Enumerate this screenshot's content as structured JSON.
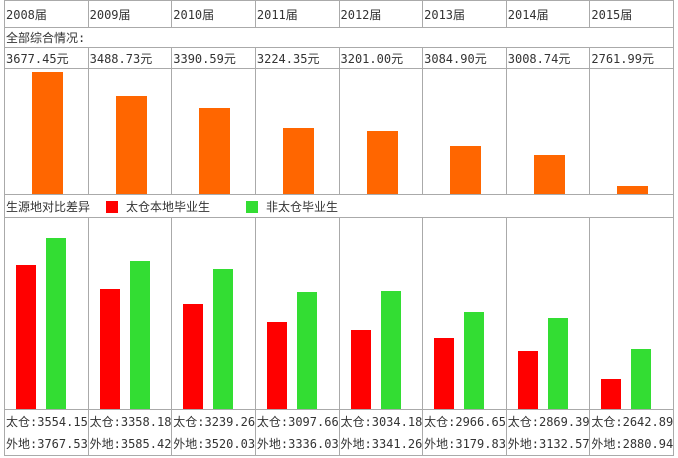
{
  "header_years": [
    "2008届",
    "2009届",
    "2010届",
    "2011届",
    "2012届",
    "2013届",
    "2014届",
    "2015届"
  ],
  "overall_label": "全部综合情况:",
  "overall_values": [
    "3677.45元",
    "3488.73元",
    "3390.59元",
    "3224.35元",
    "3201.00元",
    "3084.90元",
    "3008.74元",
    "2761.99元"
  ],
  "comparison_label": "生源地对比差异",
  "legend": {
    "local": "太仓本地毕业生",
    "nonlocal": "非太仓毕业生"
  },
  "labels": {
    "local": [
      "太仓:3554.15",
      "太仓:3358.18",
      "太仓:3239.26",
      "太仓:3097.66",
      "太仓:3034.18",
      "太仓:2966.65",
      "太仓:2869.39",
      "太仓:2642.89"
    ],
    "nonlocal": [
      "外地:3767.53",
      "外地:3585.42",
      "外地:3520.03",
      "外地:3336.03",
      "外地:3341.26",
      "外地:3179.83",
      "外地:3132.57",
      "外地:2880.94"
    ]
  },
  "colors": {
    "overall": "#ff6600",
    "local": "#ff0000",
    "nonlocal": "#33dd33"
  },
  "chart_data": [
    {
      "type": "bar",
      "categories": [
        "2008届",
        "2009届",
        "2010届",
        "2011届",
        "2012届",
        "2013届",
        "2014届",
        "2015届"
      ],
      "values": [
        3677.45,
        3488.73,
        3390.59,
        3224.35,
        3201.0,
        3084.9,
        3008.74,
        2761.99
      ]
    },
    {
      "type": "bar",
      "categories": [
        "2008届",
        "2009届",
        "2010届",
        "2011届",
        "2012届",
        "2013届",
        "2014届",
        "2015届"
      ],
      "series": [
        {
          "name": "太仓本地毕业生",
          "values": [
            3554.15,
            3358.18,
            3239.26,
            3097.66,
            3034.18,
            2966.65,
            2869.39,
            2642.89
          ]
        },
        {
          "name": "非太仓毕业生",
          "values": [
            3767.53,
            3585.42,
            3520.03,
            3336.03,
            3341.26,
            3179.83,
            3132.57,
            2880.94
          ]
        }
      ]
    }
  ]
}
